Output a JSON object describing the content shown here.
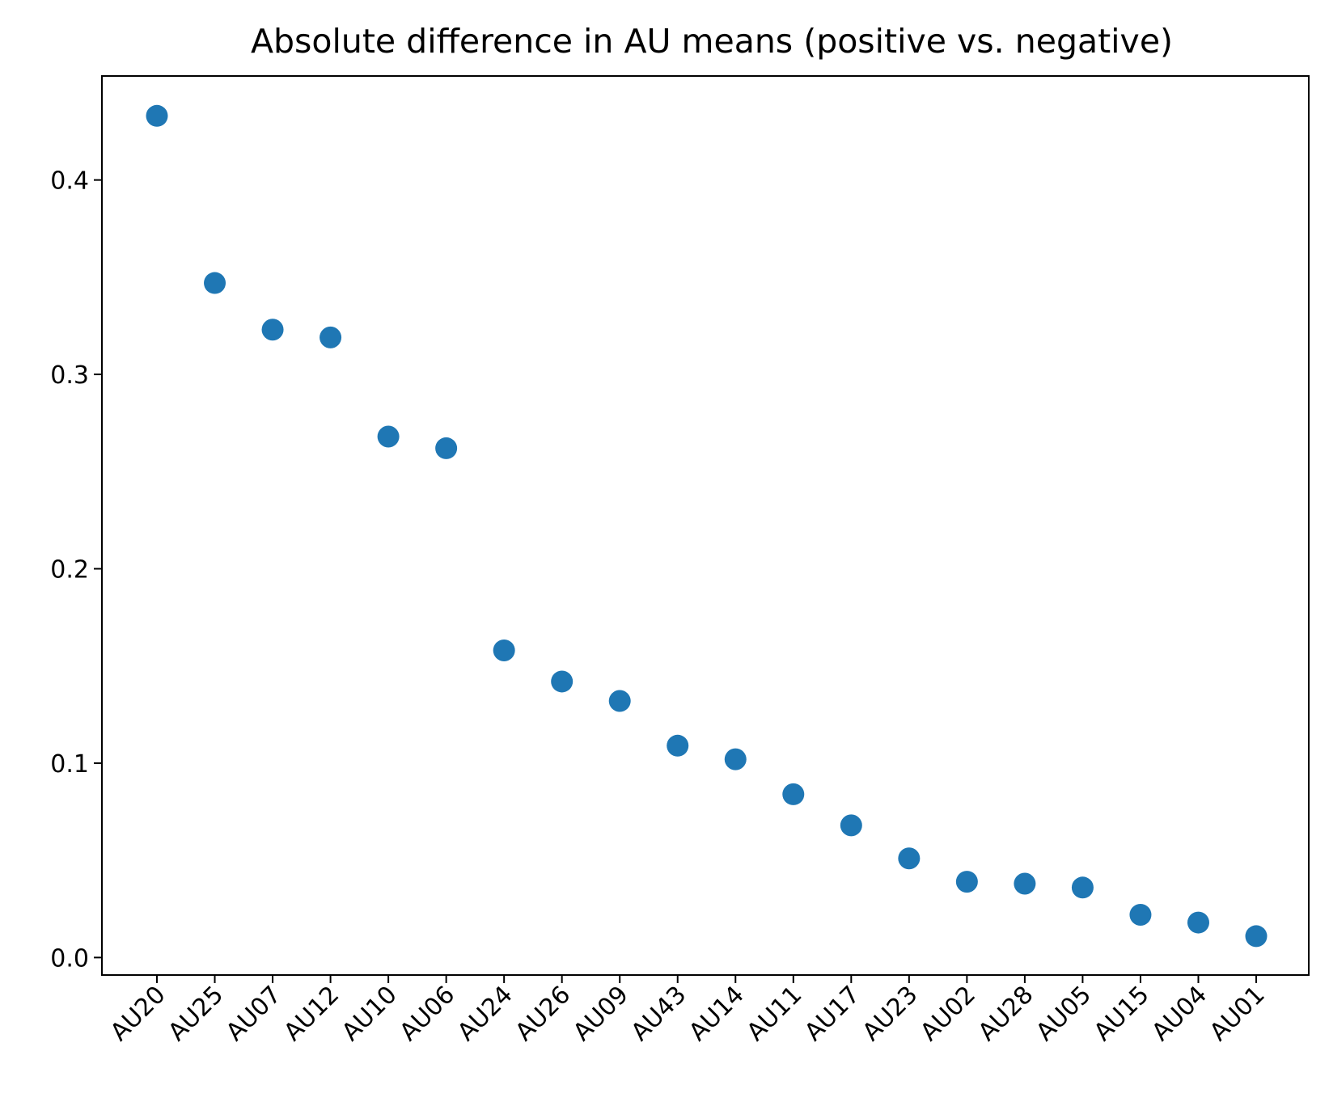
{
  "chart_data": {
    "type": "scatter",
    "title": "Absolute difference in AU means (positive vs. negative)",
    "xlabel": "",
    "ylabel": "",
    "categories": [
      "AU20",
      "AU25",
      "AU07",
      "AU12",
      "AU10",
      "AU06",
      "AU24",
      "AU26",
      "AU09",
      "AU43",
      "AU14",
      "AU11",
      "AU17",
      "AU23",
      "AU02",
      "AU28",
      "AU05",
      "AU15",
      "AU04",
      "AU01"
    ],
    "values": [
      0.433,
      0.347,
      0.323,
      0.319,
      0.268,
      0.262,
      0.158,
      0.142,
      0.132,
      0.109,
      0.102,
      0.084,
      0.068,
      0.051,
      0.039,
      0.038,
      0.036,
      0.022,
      0.018,
      0.011
    ],
    "ylim": [
      -0.009,
      0.4535
    ],
    "yticks": [
      0.0,
      0.1,
      0.2,
      0.3,
      0.4
    ],
    "ytick_labels": [
      "0.0",
      "0.1",
      "0.2",
      "0.3",
      "0.4"
    ],
    "xtick_rotation_deg": 45,
    "grid": false,
    "legend": "none",
    "marker_color": "#1f77b4"
  }
}
